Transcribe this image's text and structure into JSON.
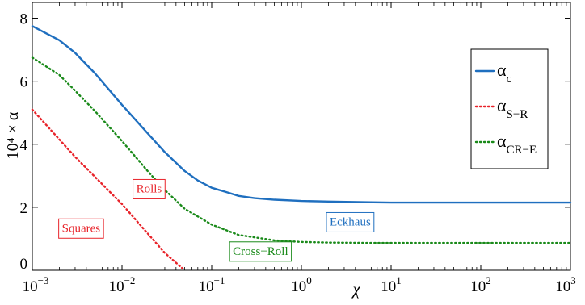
{
  "chart_data": {
    "type": "line",
    "xscale": "log",
    "xlim": [
      0.001,
      1000
    ],
    "ylim": [
      0,
      8.5
    ],
    "xlabel": "χ",
    "ylabel": "10⁴ × α",
    "x_ticks": [
      {
        "base": "10",
        "exp": "−3"
      },
      {
        "base": "10",
        "exp": "−2"
      },
      {
        "base": "10",
        "exp": "−1"
      },
      {
        "base": "10",
        "exp": "0"
      },
      {
        "base": "10",
        "exp": "1"
      },
      {
        "base": "10",
        "exp": "2"
      },
      {
        "base": "10",
        "exp": "3"
      }
    ],
    "x_tick_values": [
      0.001,
      0.01,
      0.1,
      1,
      10,
      100,
      1000
    ],
    "y_ticks": [
      "0",
      "2",
      "4",
      "6",
      "8"
    ],
    "y_tick_values": [
      0,
      2,
      4,
      6,
      8
    ],
    "legend": {
      "placement": "top-right"
    },
    "series": [
      {
        "name": "α_c",
        "label_main": "α",
        "label_sub": "c",
        "color": "#1f6fbf",
        "style": "solid",
        "x": [
          0.001,
          0.002,
          0.003,
          0.005,
          0.01,
          0.02,
          0.03,
          0.05,
          0.07,
          0.1,
          0.15,
          0.2,
          0.3,
          0.5,
          1,
          2,
          5,
          10,
          100,
          1000
        ],
        "y": [
          7.75,
          7.3,
          6.9,
          6.25,
          5.25,
          4.3,
          3.75,
          3.15,
          2.85,
          2.62,
          2.47,
          2.36,
          2.29,
          2.24,
          2.2,
          2.18,
          2.16,
          2.15,
          2.15,
          2.15
        ]
      },
      {
        "name": "α_S−R",
        "label_main": "α",
        "label_sub": "S−R",
        "color": "#e8232a",
        "style": "dotted",
        "x": [
          0.001,
          0.003,
          0.01,
          0.02,
          0.03,
          0.05
        ],
        "y": [
          5.1,
          3.6,
          2.1,
          1.12,
          0.55,
          0.0
        ]
      },
      {
        "name": "α_CR−E",
        "label_main": "α",
        "label_sub": "CR−E",
        "color": "#1a8a1a",
        "style": "dotted",
        "x": [
          0.001,
          0.002,
          0.003,
          0.005,
          0.01,
          0.02,
          0.03,
          0.05,
          0.1,
          0.2,
          0.5,
          1,
          2,
          5,
          10,
          100,
          1000
        ],
        "y": [
          6.75,
          6.2,
          5.7,
          5.05,
          4.1,
          3.1,
          2.55,
          1.95,
          1.45,
          1.12,
          0.95,
          0.9,
          0.88,
          0.87,
          0.87,
          0.87,
          0.87
        ]
      }
    ],
    "annotations": [
      {
        "text": "Rolls",
        "x": 0.02,
        "y": 2.6,
        "color": "#e8232a"
      },
      {
        "text": "Squares",
        "x": 0.0035,
        "y": 1.35,
        "color": "#e8232a"
      },
      {
        "text": "Cross−Roll",
        "x": 0.35,
        "y": 0.62,
        "color": "#1a8a1a"
      },
      {
        "text": "Eckhaus",
        "x": 3.5,
        "y": 1.55,
        "color": "#1f6fbf"
      }
    ]
  }
}
